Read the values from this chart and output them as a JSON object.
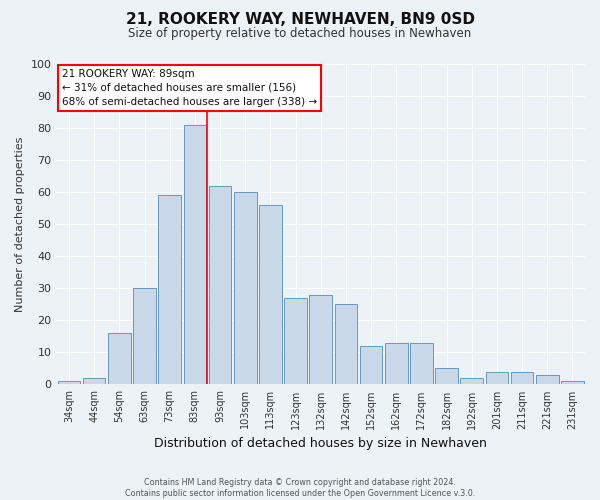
{
  "title": "21, ROOKERY WAY, NEWHAVEN, BN9 0SD",
  "subtitle": "Size of property relative to detached houses in Newhaven",
  "xlabel": "Distribution of detached houses by size in Newhaven",
  "ylabel": "Number of detached properties",
  "bar_color": "#c9d9ea",
  "bar_edge_color": "#6699bb",
  "background_color": "#edf2f7",
  "grid_color": "#ffffff",
  "categories": [
    "34sqm",
    "44sqm",
    "54sqm",
    "63sqm",
    "73sqm",
    "83sqm",
    "93sqm",
    "103sqm",
    "113sqm",
    "123sqm",
    "132sqm",
    "142sqm",
    "152sqm",
    "162sqm",
    "172sqm",
    "182sqm",
    "192sqm",
    "201sqm",
    "211sqm",
    "221sqm",
    "231sqm"
  ],
  "values": [
    1,
    2,
    16,
    30,
    59,
    81,
    62,
    60,
    56,
    27,
    28,
    25,
    12,
    13,
    13,
    5,
    2,
    4,
    4,
    3,
    1
  ],
  "ylim": [
    0,
    100
  ],
  "annotation_title": "21 ROOKERY WAY: 89sqm",
  "annotation_line1": "← 31% of detached houses are smaller (156)",
  "annotation_line2": "68% of semi-detached houses are larger (338) →",
  "footer_line1": "Contains HM Land Registry data © Crown copyright and database right 2024.",
  "footer_line2": "Contains public sector information licensed under the Open Government Licence v.3.0."
}
